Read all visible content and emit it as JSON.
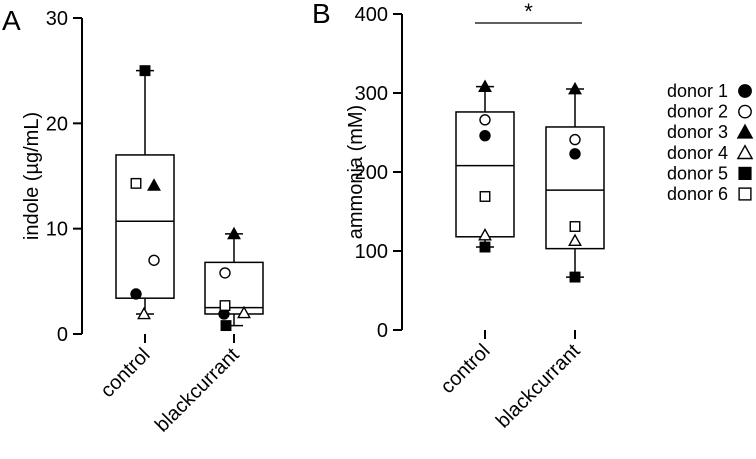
{
  "chart_data": [
    {
      "panel_label": "A",
      "type": "box",
      "title": "",
      "xlabel": "",
      "ylabel": "indole (µg/mL)",
      "ylim": [
        0,
        30
      ],
      "yticks": [
        0,
        10,
        20,
        30
      ],
      "categories": [
        "control",
        "blackcurrant"
      ],
      "boxes": [
        {
          "category": "control",
          "min": 1.9,
          "q1": 3.4,
          "median": 10.7,
          "q3": 17.0,
          "max": 25.0
        },
        {
          "category": "blackcurrant",
          "min": 0.8,
          "q1": 1.9,
          "median": 2.5,
          "q3": 6.8,
          "max": 9.5
        }
      ],
      "series": [
        {
          "name": "donor 1",
          "values": [
            3.8,
            1.9
          ]
        },
        {
          "name": "donor 2",
          "values": [
            7.0,
            5.8
          ]
        },
        {
          "name": "donor 3",
          "values": [
            14.1,
            9.5
          ]
        },
        {
          "name": "donor 4",
          "values": [
            1.9,
            2.0
          ]
        },
        {
          "name": "donor 5",
          "values": [
            25.0,
            0.8
          ]
        },
        {
          "name": "donor 6",
          "values": [
            14.3,
            2.7
          ]
        }
      ],
      "annotations": []
    },
    {
      "panel_label": "B",
      "type": "box",
      "title": "",
      "xlabel": "",
      "ylabel": "ammonia  (mM)",
      "ylim": [
        0,
        400
      ],
      "yticks": [
        0,
        100,
        200,
        300,
        400
      ],
      "categories": [
        "control",
        "blackcurrant"
      ],
      "boxes": [
        {
          "category": "control",
          "min": 105,
          "q1": 118,
          "median": 208,
          "q3": 276,
          "max": 308
        },
        {
          "category": "blackcurrant",
          "min": 67,
          "q1": 103,
          "median": 177,
          "q3": 257,
          "max": 305
        }
      ],
      "series": [
        {
          "name": "donor 1",
          "values": [
            246,
            223
          ]
        },
        {
          "name": "donor 2",
          "values": [
            266,
            241
          ]
        },
        {
          "name": "donor 3",
          "values": [
            308,
            305
          ]
        },
        {
          "name": "donor 4",
          "values": [
            120,
            113
          ]
        },
        {
          "name": "donor 5",
          "values": [
            105,
            67
          ]
        },
        {
          "name": "donor 6",
          "values": [
            169,
            131
          ]
        }
      ],
      "annotations": [
        {
          "text": "*",
          "between": [
            "control",
            "blackcurrant"
          ]
        }
      ]
    }
  ],
  "legend": {
    "placement": "right",
    "items": [
      {
        "label": "donor 1",
        "marker": "filled-circle"
      },
      {
        "label": "donor 2",
        "marker": "open-circle"
      },
      {
        "label": "donor 3",
        "marker": "filled-triangle"
      },
      {
        "label": "donor 4",
        "marker": "open-triangle"
      },
      {
        "label": "donor 5",
        "marker": "filled-square"
      },
      {
        "label": "donor 6",
        "marker": "open-square"
      }
    ]
  }
}
